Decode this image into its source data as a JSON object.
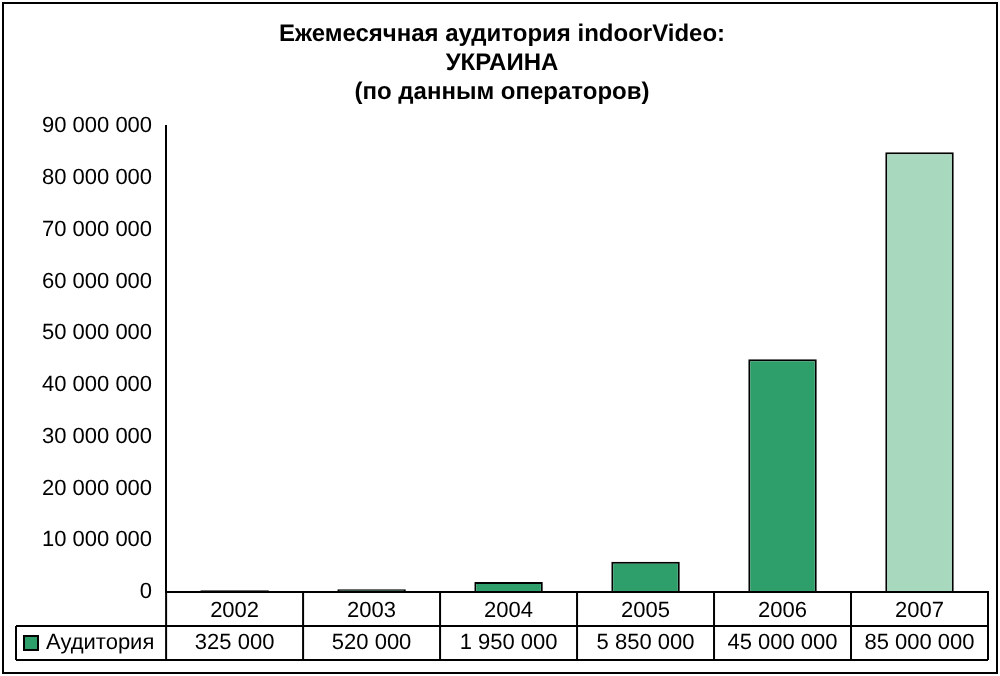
{
  "chart_data": {
    "type": "bar",
    "title": "Ежемесячная аудитория indoorVideo:\nУКРАИНА\n(по данным операторов)",
    "categories": [
      "2002",
      "2003",
      "2004",
      "2005",
      "2006",
      "2007"
    ],
    "series": [
      {
        "name": "Аудитория",
        "color": "#2e9e6b",
        "colors": [
          "#2e9e6b",
          "#2e9e6b",
          "#2e9e6b",
          "#2e9e6b",
          "#2e9e6b",
          "#a8d8be"
        ],
        "values": [
          325000,
          520000,
          1950000,
          5850000,
          45000000,
          85000000
        ],
        "value_labels": [
          "325 000",
          "520 000",
          "1 950 000",
          "5 850 000",
          "45 000 000",
          "85 000 000"
        ]
      }
    ],
    "ylim": [
      0,
      90000000
    ],
    "yticks": [
      {
        "value": 0,
        "label": "0"
      },
      {
        "value": 10000000,
        "label": "10 000 000"
      },
      {
        "value": 20000000,
        "label": "20 000 000"
      },
      {
        "value": 30000000,
        "label": "30 000 000"
      },
      {
        "value": 40000000,
        "label": "40 000 000"
      },
      {
        "value": 50000000,
        "label": "50 000 000"
      },
      {
        "value": 60000000,
        "label": "60 000 000"
      },
      {
        "value": 70000000,
        "label": "70 000 000"
      },
      {
        "value": 80000000,
        "label": "80 000 000"
      },
      {
        "value": 90000000,
        "label": "90 000 000"
      }
    ],
    "grid": false,
    "legend": "bottom"
  }
}
